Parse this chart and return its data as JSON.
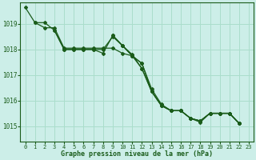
{
  "title": "Graphe pression niveau de la mer (hPa)",
  "bg_color": "#cceee8",
  "grid_color": "#aaddcc",
  "line_color": "#1a5c1a",
  "xlim": [
    -0.5,
    23.5
  ],
  "ylim": [
    1014.4,
    1019.85
  ],
  "yticks": [
    1015,
    1016,
    1017,
    1018,
    1019
  ],
  "xticks": [
    0,
    1,
    2,
    3,
    4,
    5,
    6,
    7,
    8,
    9,
    10,
    11,
    12,
    13,
    14,
    15,
    16,
    17,
    18,
    19,
    20,
    21,
    22,
    23
  ],
  "series": [
    {
      "x": [
        0,
        1,
        2,
        3,
        4,
        5,
        6,
        7,
        8,
        9,
        10,
        11,
        12,
        13,
        14,
        15,
        16,
        17,
        18,
        19,
        20,
        21,
        22
      ],
      "y": [
        1019.65,
        1019.05,
        1019.05,
        1018.75,
        1018.0,
        1018.0,
        1018.0,
        1018.0,
        1017.85,
        1018.55,
        1018.15,
        1017.8,
        1017.25,
        1016.35,
        1015.8,
        1015.6,
        1015.6,
        1015.3,
        1015.2,
        1015.5,
        1015.5,
        1015.5,
        1015.1
      ]
    },
    {
      "x": [
        1,
        2,
        3,
        4,
        5,
        6,
        7,
        8,
        9,
        10,
        11,
        12,
        13,
        14,
        15,
        16,
        17,
        18,
        19,
        20,
        21,
        22
      ],
      "y": [
        1019.05,
        1018.85,
        1018.85,
        1018.05,
        1018.05,
        1018.05,
        1018.05,
        1018.05,
        1018.05,
        1017.85,
        1017.75,
        1017.45,
        1016.45,
        1015.85,
        1015.6,
        1015.6,
        1015.3,
        1015.2,
        1015.5,
        1015.5,
        1015.5,
        1015.1
      ]
    },
    {
      "x": [
        3,
        4,
        5,
        6,
        7,
        8,
        9,
        10,
        11,
        12,
        13,
        14,
        15,
        16,
        17,
        18,
        19,
        20,
        21,
        22
      ],
      "y": [
        1018.75,
        1018.0,
        1018.0,
        1018.0,
        1018.0,
        1018.0,
        1018.5,
        1018.15,
        1017.75,
        1017.25,
        1016.35,
        1015.8,
        1015.6,
        1015.6,
        1015.3,
        1015.2,
        1015.5,
        1015.5,
        1015.5,
        1015.1
      ]
    },
    {
      "x": [
        9,
        10,
        11,
        12,
        13,
        14,
        15,
        16,
        17,
        18,
        19,
        20,
        21,
        22
      ],
      "y": [
        1018.55,
        1018.15,
        1017.75,
        1017.45,
        1016.35,
        1015.8,
        1015.6,
        1015.6,
        1015.3,
        1015.15,
        1015.5,
        1015.5,
        1015.5,
        1015.1
      ]
    }
  ]
}
